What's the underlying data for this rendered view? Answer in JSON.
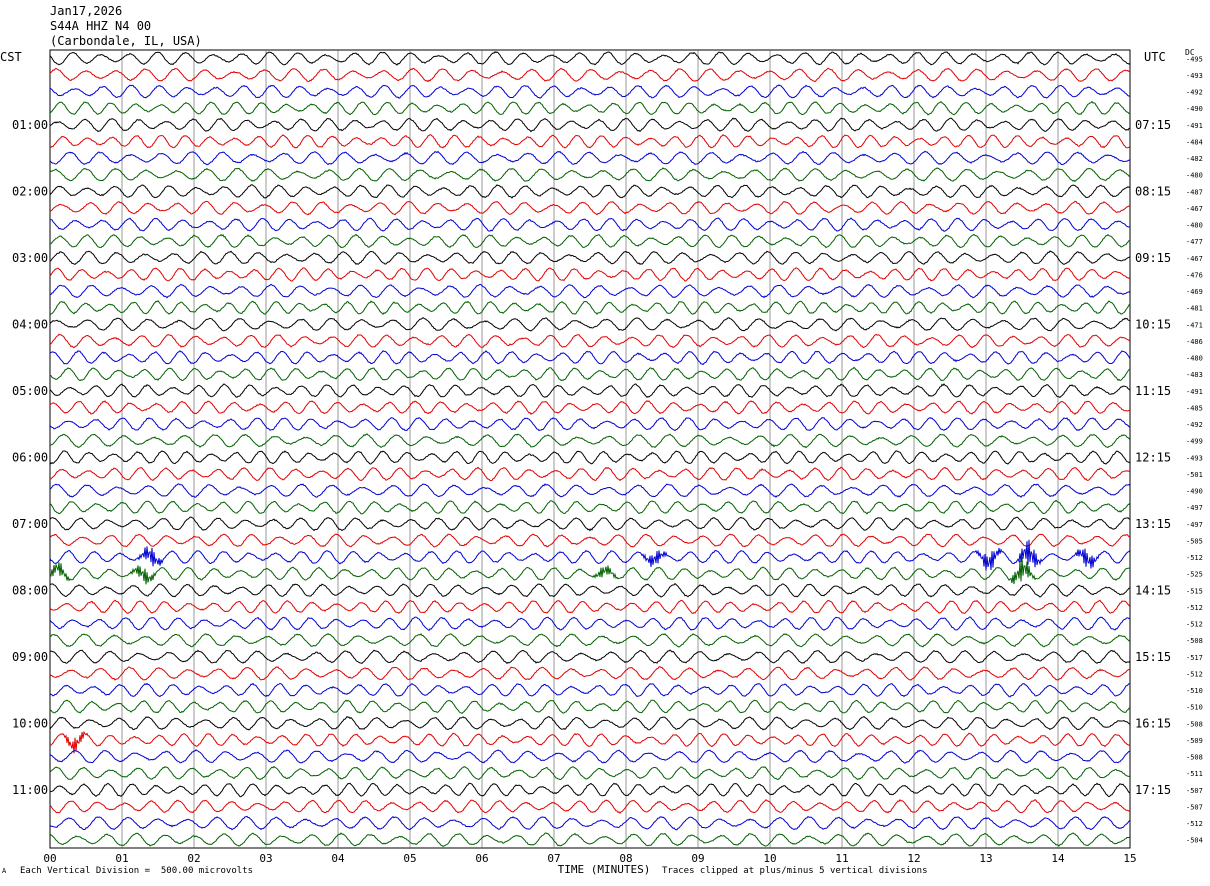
{
  "header": {
    "date": "Jan17,2026",
    "station": "S44A HHZ N4 00",
    "location": "(Carbondale, IL, USA)"
  },
  "left_timezone": "CST",
  "right_timezone": "UTC",
  "dc_label": "DC",
  "footer": {
    "scale_note": "Each Vertical Division =  500.00 microvolts",
    "clip_note": "Traces clipped at plus/minus 5 vertical divisions",
    "corner_mark": "A"
  },
  "colors": {
    "cycle": [
      "#000000",
      "#e00000",
      "#0000d0",
      "#006000"
    ],
    "grid": "#000000",
    "background": "#ffffff"
  },
  "chart_data": {
    "type": "line",
    "title": "",
    "xlabel": "TIME (MINUTES)",
    "ylabel": "",
    "xlim": [
      0,
      15
    ],
    "x_tick_labels": [
      "00",
      "01",
      "02",
      "03",
      "04",
      "05",
      "06",
      "07",
      "08",
      "09",
      "10",
      "11",
      "12",
      "13",
      "14",
      "15"
    ],
    "grid": true,
    "trace_count": 48,
    "left_hour_labels": [
      {
        "trace": 4,
        "label": "01:00"
      },
      {
        "trace": 8,
        "label": "02:00"
      },
      {
        "trace": 12,
        "label": "03:00"
      },
      {
        "trace": 16,
        "label": "04:00"
      },
      {
        "trace": 20,
        "label": "05:00"
      },
      {
        "trace": 24,
        "label": "06:00"
      },
      {
        "trace": 28,
        "label": "07:00"
      },
      {
        "trace": 32,
        "label": "08:00"
      },
      {
        "trace": 36,
        "label": "09:00"
      },
      {
        "trace": 40,
        "label": "10:00"
      },
      {
        "trace": 44,
        "label": "11:00"
      }
    ],
    "right_hour_labels": [
      {
        "trace": 4,
        "label": "07:15"
      },
      {
        "trace": 8,
        "label": "08:15"
      },
      {
        "trace": 12,
        "label": "09:15"
      },
      {
        "trace": 16,
        "label": "10:15"
      },
      {
        "trace": 20,
        "label": "11:15"
      },
      {
        "trace": 24,
        "label": "12:15"
      },
      {
        "trace": 28,
        "label": "13:15"
      },
      {
        "trace": 32,
        "label": "14:15"
      },
      {
        "trace": 36,
        "label": "15:15"
      },
      {
        "trace": 40,
        "label": "16:15"
      },
      {
        "trace": 44,
        "label": "17:15"
      }
    ],
    "dc_offsets": [
      -495,
      -493,
      -492,
      -490,
      -491,
      -484,
      -482,
      -480,
      -487,
      -467,
      -480,
      -477,
      -467,
      -476,
      -469,
      -481,
      -471,
      -486,
      -480,
      -483,
      -491,
      -485,
      -492,
      -499,
      -493,
      -501,
      -490,
      -497,
      -497,
      -505,
      -512,
      -525,
      -515,
      -512,
      -512,
      -508,
      -517,
      -512,
      -510,
      -510,
      -508,
      -509,
      -508,
      -511,
      -507,
      -507,
      -512,
      -504
    ],
    "events": [
      {
        "trace": 30,
        "x": 1.4,
        "amplitude": 1.6
      },
      {
        "trace": 30,
        "x": 8.4,
        "amplitude": 1.3
      },
      {
        "trace": 30,
        "x": 13.05,
        "amplitude": 1.8
      },
      {
        "trace": 30,
        "x": 13.6,
        "amplitude": 2.2
      },
      {
        "trace": 30,
        "x": 14.4,
        "amplitude": 1.6
      },
      {
        "trace": 31,
        "x": 0.12,
        "amplitude": 1.2
      },
      {
        "trace": 31,
        "x": 1.3,
        "amplitude": 1.4
      },
      {
        "trace": 31,
        "x": 7.7,
        "amplitude": 1.0
      },
      {
        "trace": 31,
        "x": 13.5,
        "amplitude": 2.0
      },
      {
        "trace": 41,
        "x": 0.35,
        "amplitude": 1.3
      }
    ]
  }
}
